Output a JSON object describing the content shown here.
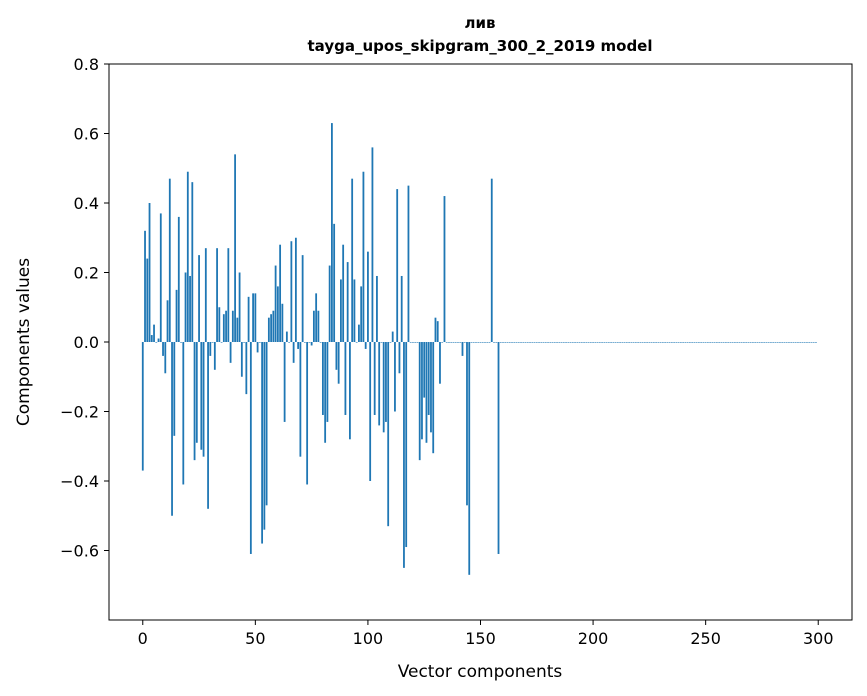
{
  "chart_data": {
    "type": "bar",
    "title": "лив",
    "subtitle": "tayga_upos_skipgram_300_2_2019 model",
    "xlabel": "Vector components",
    "ylabel": "Components values",
    "xlim": [
      -15,
      315
    ],
    "ylim": [
      -0.8,
      0.8
    ],
    "xticks": [
      0,
      50,
      100,
      150,
      200,
      250,
      300
    ],
    "yticks": [
      -0.6,
      -0.4,
      -0.2,
      0.0,
      0.2,
      0.4,
      0.6,
      0.8
    ],
    "ytick_labels": [
      "−0.6",
      "−0.4",
      "−0.2",
      "0.0",
      "0.2",
      "0.4",
      "0.6",
      "0.8"
    ],
    "bar_color": "#1f77b4",
    "grid": false,
    "values": [
      -0.37,
      0.32,
      0.24,
      0.4,
      0.02,
      0.05,
      0.0,
      0.01,
      0.37,
      -0.04,
      -0.09,
      0.12,
      0.47,
      -0.5,
      -0.27,
      0.15,
      0.36,
      0.0,
      -0.41,
      0.2,
      0.49,
      0.19,
      0.46,
      -0.34,
      -0.29,
      0.25,
      -0.31,
      -0.33,
      0.27,
      -0.48,
      -0.04,
      0.0,
      -0.08,
      0.27,
      0.1,
      0.0,
      0.08,
      0.09,
      0.27,
      -0.06,
      0.09,
      0.54,
      0.07,
      0.2,
      -0.1,
      0.0,
      -0.15,
      0.13,
      -0.61,
      0.14,
      0.14,
      -0.03,
      0.0,
      -0.58,
      -0.54,
      -0.47,
      0.07,
      0.08,
      0.09,
      0.22,
      0.16,
      0.28,
      0.11,
      -0.23,
      0.03,
      0.0,
      0.29,
      -0.06,
      0.3,
      -0.02,
      -0.33,
      0.25,
      0.0,
      -0.41,
      0.0,
      -0.01,
      0.09,
      0.14,
      0.09,
      0.0,
      -0.21,
      -0.29,
      -0.23,
      0.22,
      0.63,
      0.34,
      -0.08,
      -0.12,
      0.18,
      0.28,
      -0.21,
      0.23,
      -0.28,
      0.47,
      0.18,
      0.0,
      0.05,
      0.16,
      0.49,
      -0.02,
      0.26,
      -0.4,
      0.56,
      -0.21,
      0.19,
      -0.24,
      0.0,
      -0.26,
      -0.23,
      -0.53,
      0.0,
      0.03,
      -0.2,
      0.44,
      -0.09,
      0.19,
      -0.65,
      -0.59,
      0.45,
      0.0,
      0.0,
      0.0,
      0.0,
      -0.34,
      -0.28,
      -0.16,
      -0.29,
      -0.21,
      -0.26,
      -0.32,
      0.07,
      0.06,
      -0.12,
      0.0,
      0.42,
      0.0,
      0.0,
      0.0,
      0.0,
      0.0,
      0.0,
      0.0,
      -0.04,
      0.0,
      -0.47,
      -0.67,
      0.0,
      0.0,
      0.0,
      0.0,
      0.0,
      0.0,
      0.0,
      0.0,
      0.0,
      0.47,
      0.0,
      0.0,
      -0.61,
      0.0,
      0.0,
      0.0,
      0.0,
      0.0,
      0.0,
      0.0,
      0.0,
      0.0,
      0.0,
      0.0,
      0.0,
      0.0,
      0.0,
      0.0,
      0.0,
      0.0,
      0.0,
      0.0,
      0.0,
      0.0,
      0.0,
      0.0,
      0.0,
      0.0,
      0.0,
      0.0,
      0.0,
      0.0,
      0.0,
      0.0,
      0.0,
      0.0,
      0.0,
      0.0,
      0.0,
      0.0,
      0.0,
      0.0,
      0.0,
      0.0,
      0.0,
      0.0,
      0.0,
      0.0,
      0.0,
      0.0,
      0.0,
      0.0,
      0.0,
      0.0,
      0.0,
      0.0,
      0.0,
      0.0,
      0.0,
      0.0,
      0.0,
      0.0,
      0.0,
      0.0,
      0.0,
      0.0,
      0.0,
      0.0,
      0.0,
      0.0,
      0.0,
      0.0,
      0.0,
      0.0,
      0.0,
      0.0,
      0.0,
      0.0,
      0.0,
      0.0,
      0.0,
      0.0,
      0.0,
      0.0,
      0.0,
      0.0,
      0.0,
      0.0,
      0.0,
      0.0,
      0.0,
      0.0,
      0.0,
      0.0,
      0.0,
      0.0,
      0.0,
      0.0,
      0.0,
      0.0,
      0.0,
      0.0,
      0.0,
      0.0,
      0.0,
      0.0,
      0.0,
      0.0,
      0.0,
      0.0,
      0.0,
      0.0,
      0.0,
      0.0,
      0.0,
      0.0,
      0.0,
      0.0,
      0.0,
      0.0,
      0.0,
      0.0,
      0.0,
      0.0,
      0.0,
      0.0,
      0.0,
      0.0,
      0.0,
      0.0,
      0.0,
      0.0,
      0.0,
      0.0,
      0.0,
      0.0,
      0.0,
      0.0,
      0.0,
      0.0,
      0.0,
      0.0,
      0.0,
      0.0
    ]
  }
}
